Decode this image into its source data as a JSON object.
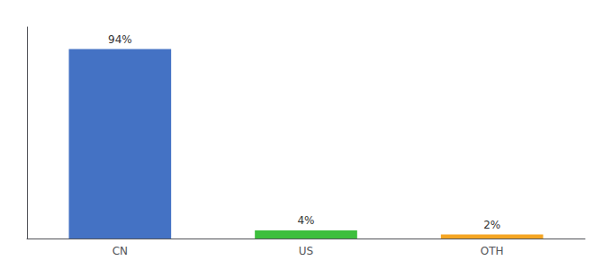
{
  "chart_data": {
    "type": "bar",
    "categories": [
      "CN",
      "US",
      "OTH"
    ],
    "values": [
      94,
      4,
      2
    ],
    "value_labels": [
      "94%",
      "4%",
      "2%"
    ],
    "colors": [
      "#4472c4",
      "#3dbf3d",
      "#f5a623"
    ],
    "ylim": [
      0,
      105
    ],
    "data_labels": true,
    "tick_labels": "x",
    "grid": false
  }
}
